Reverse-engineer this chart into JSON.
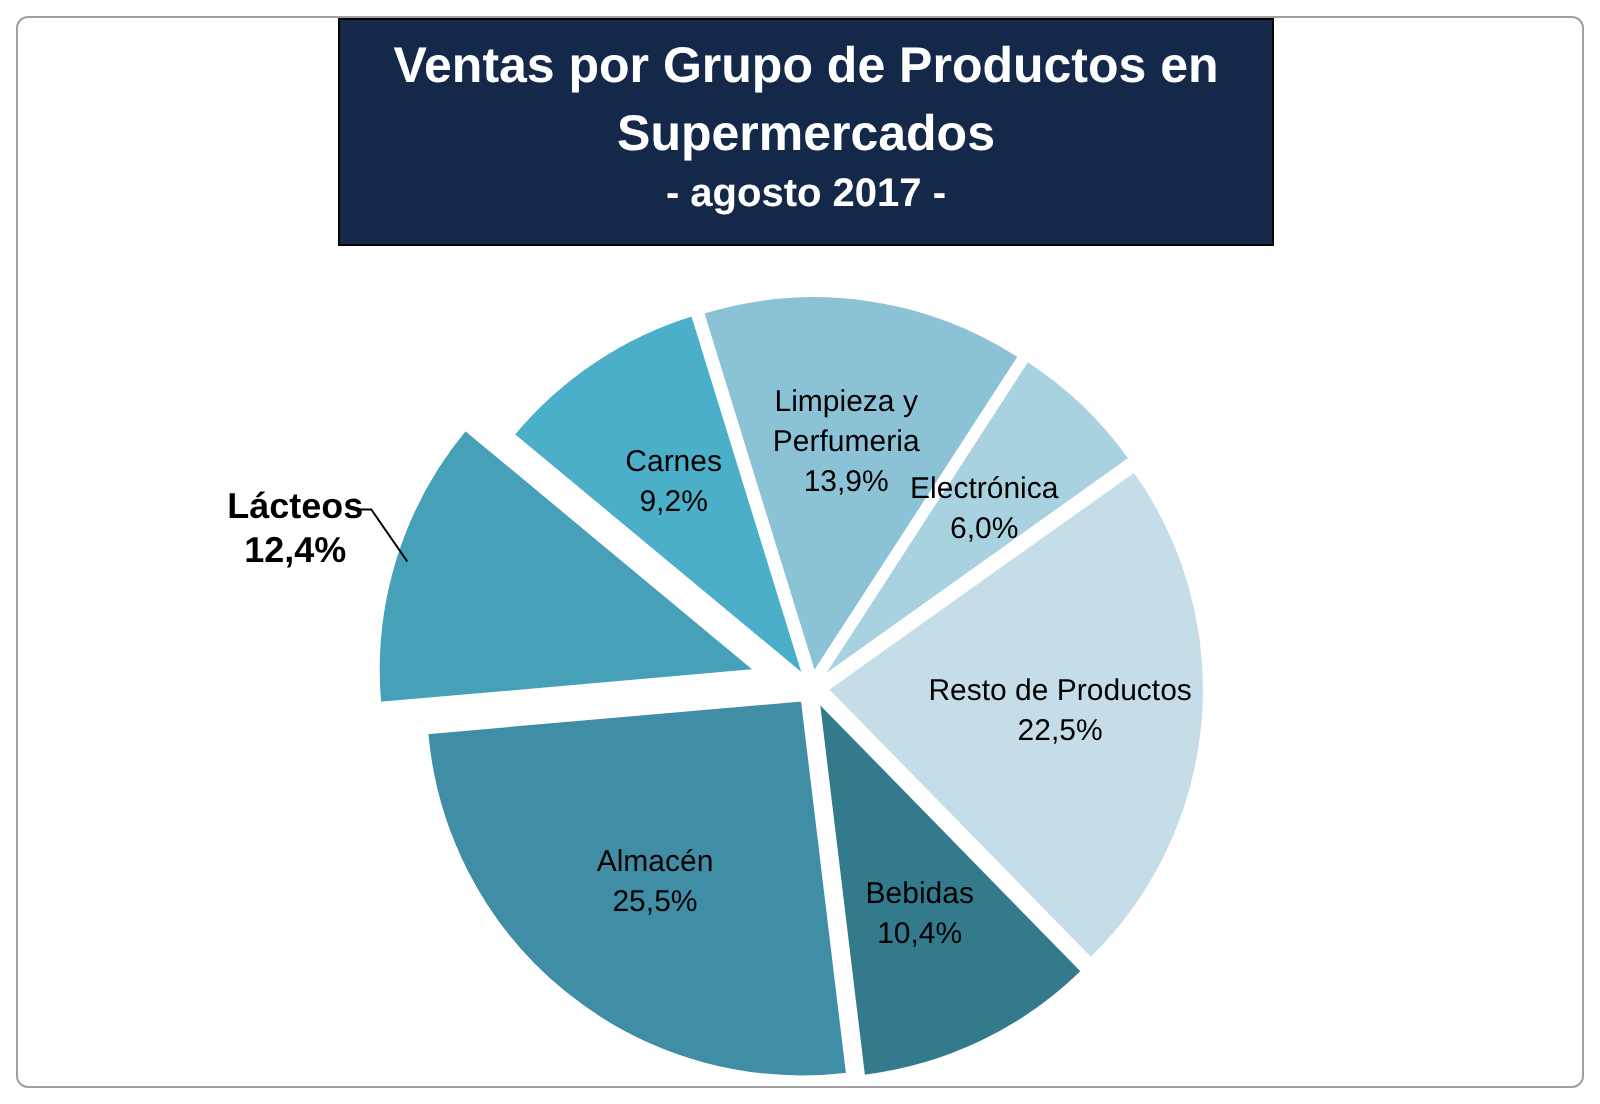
{
  "chart_data": {
    "type": "pie",
    "title": "Ventas por Grupo de Productos en Supermercados",
    "subtitle": "- agosto 2017 -",
    "categories": [
      "Limpieza y Perfumeria",
      "Electrónica",
      "Resto de Productos",
      "Bebidas",
      "Almacén",
      "Lácteos",
      "Carnes"
    ],
    "values": [
      13.9,
      6.0,
      22.5,
      10.4,
      25.5,
      12.4,
      9.2
    ],
    "value_labels": [
      "13,9%",
      "6,0%",
      "22,5%",
      "10,4%",
      "25,5%",
      "12,4%",
      "9,2%"
    ],
    "colors": [
      "#8cc2d6",
      "#a9d2e0",
      "#c5dde8",
      "#327a8c",
      "#3f8ea6",
      "#46a0b8",
      "#4bafc9"
    ],
    "legend": false
  }
}
